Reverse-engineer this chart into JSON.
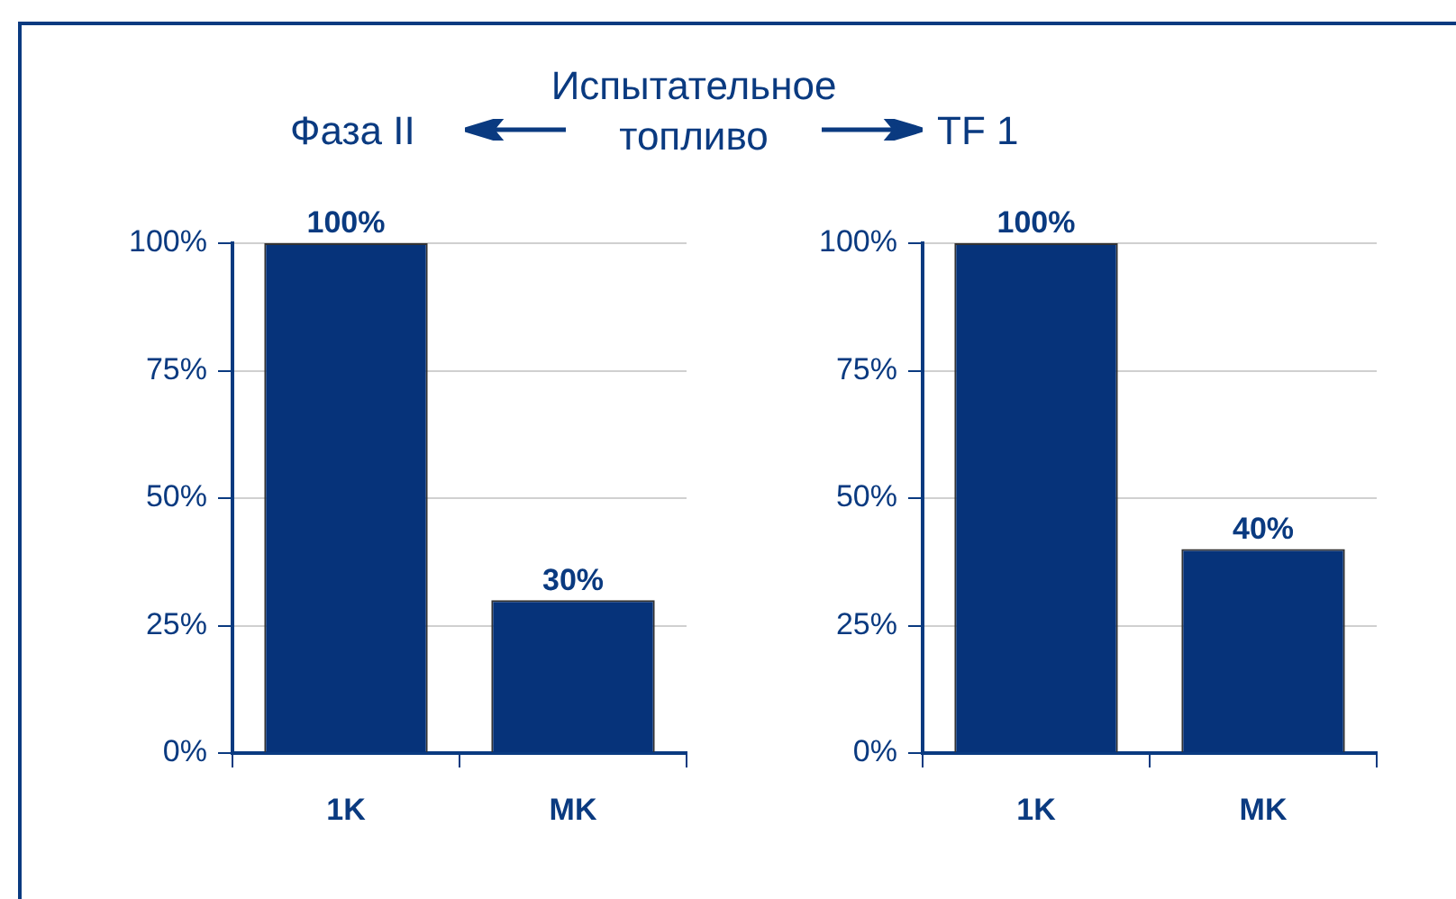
{
  "chart_data": [
    {
      "type": "bar",
      "title": "Фаза II",
      "annotations": [
        "Испытательное топливо"
      ],
      "categories": [
        "1K",
        "MK"
      ],
      "values": [
        100,
        30
      ],
      "value_labels": [
        "100%",
        "30%"
      ],
      "color": "#06337a",
      "ylim": [
        0,
        100
      ],
      "yticks": [
        {
          "value": 0,
          "label": "0%"
        },
        {
          "value": 25,
          "label": "25%"
        },
        {
          "value": 50,
          "label": "50%"
        },
        {
          "value": 75,
          "label": "75%"
        },
        {
          "value": 100,
          "label": "100%"
        }
      ],
      "grid": "y",
      "legend": false
    },
    {
      "type": "bar",
      "title": "TF 1",
      "categories": [
        "1K",
        "MK"
      ],
      "values": [
        100,
        40
      ],
      "value_labels": [
        "100%",
        "40%"
      ],
      "color": "#06337a",
      "ylim": [
        0,
        100
      ],
      "yticks": [
        {
          "value": 0,
          "label": "0%"
        },
        {
          "value": 25,
          "label": "25%"
        },
        {
          "value": 50,
          "label": "50%"
        },
        {
          "value": 75,
          "label": "75%"
        },
        {
          "value": 100,
          "label": "100%"
        }
      ],
      "grid": "y",
      "legend": false
    }
  ]
}
